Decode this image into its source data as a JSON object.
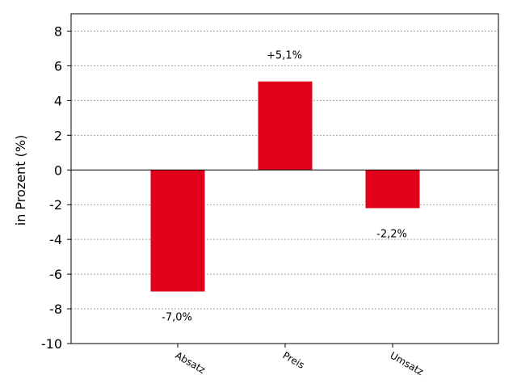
{
  "chart_data": {
    "type": "bar",
    "categories": [
      "Absatz",
      "Preis",
      "Umsatz"
    ],
    "values": [
      -7.0,
      5.1,
      -2.2
    ],
    "data_labels": [
      "-7,0%",
      "+5,1%",
      "-2,2%"
    ],
    "ylabel": "in Prozent (%)",
    "ylim": [
      -10,
      9
    ],
    "yticks": [
      -10,
      -8,
      -6,
      -4,
      -2,
      0,
      2,
      4,
      6,
      8
    ],
    "grid": "horizontal dotted",
    "colors": {
      "bar": "#e2001a",
      "grid": "#a0a0a0",
      "axis": "#000000"
    }
  }
}
